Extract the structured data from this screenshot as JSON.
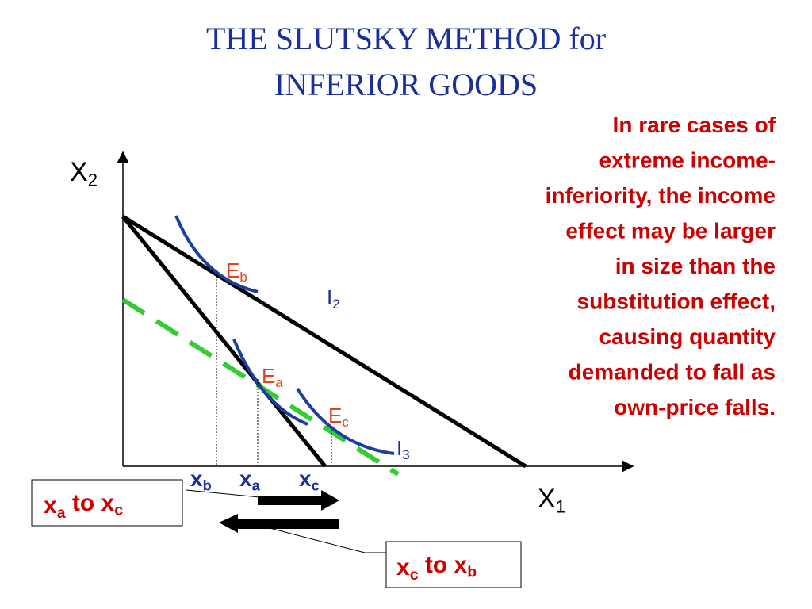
{
  "title": {
    "lines": [
      "THE SLUTSKY METHOD for",
      "INFERIOR GOODS"
    ]
  },
  "note": {
    "lines": [
      "In rare cases of",
      "extreme income-",
      "inferiority, the income",
      "effect may be larger",
      "in size than the",
      "substitution effect,",
      "causing quantity",
      "demanded to fall as",
      "own-price falls."
    ]
  },
  "axes": {
    "y": {
      "main": "X",
      "sub": "2"
    },
    "x": {
      "main": "X",
      "sub": "1"
    }
  },
  "points": [
    {
      "main": "E",
      "sub": "b"
    },
    {
      "main": "E",
      "sub": "a"
    },
    {
      "main": "E",
      "sub": "c"
    }
  ],
  "curves": [
    {
      "main": "I",
      "sub": "2"
    },
    {
      "main": "I",
      "sub": "3"
    }
  ],
  "quantities": [
    {
      "main": "x",
      "sub": "b"
    },
    {
      "main": "x",
      "sub": "a"
    },
    {
      "main": "x",
      "sub": "c"
    }
  ],
  "boxes": [
    {
      "parts": [
        "x",
        "a",
        " to ",
        "x",
        "c"
      ]
    },
    {
      "parts": [
        "x",
        "c",
        " to ",
        "x",
        "b"
      ]
    }
  ]
}
